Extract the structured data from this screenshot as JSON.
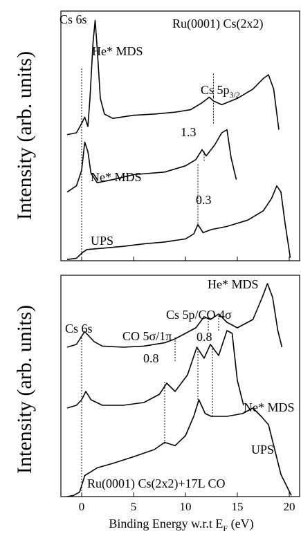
{
  "chart_data": [
    {
      "type": "line",
      "panel": "top",
      "title": "Ru(0001) Cs(2x2)",
      "ylabel": "Intensity (arb. units)",
      "xlabel": "",
      "xlim": [
        -2,
        21
      ],
      "ylim": [
        0,
        4
      ],
      "series": [
        {
          "name": "He* MDS",
          "x": [
            -1.4,
            -0.5,
            0,
            0.3,
            0.6,
            0.8,
            1.1,
            1.3,
            1.5,
            1.8,
            2.2,
            3,
            5,
            7,
            9,
            10.5,
            11.5,
            12.3,
            12.7,
            13.5,
            15,
            16.5,
            17.5,
            18.0,
            18.5,
            19.0
          ],
          "y": [
            2.02,
            2.05,
            2.2,
            2.3,
            2.15,
            2.6,
            3.5,
            3.85,
            3.4,
            2.6,
            2.35,
            2.28,
            2.33,
            2.35,
            2.38,
            2.42,
            2.52,
            2.62,
            2.56,
            2.5,
            2.6,
            2.75,
            2.92,
            2.98,
            2.75,
            2.1
          ]
        },
        {
          "name": "Ne* MDS",
          "x": [
            -1.4,
            -0.5,
            0,
            0.3,
            0.6,
            0.9,
            1.5,
            3,
            5,
            8,
            10,
            11,
            11.6,
            12,
            12.8,
            13.5,
            14,
            14.4,
            14.9
          ],
          "y": [
            1.1,
            1.2,
            1.45,
            1.9,
            1.75,
            1.4,
            1.25,
            1.3,
            1.38,
            1.42,
            1.52,
            1.62,
            1.78,
            1.68,
            1.85,
            2.05,
            2.1,
            1.65,
            1.3
          ]
        },
        {
          "name": "UPS",
          "x": [
            -1.4,
            -0.5,
            0,
            0.5,
            2,
            4,
            6,
            8,
            10,
            10.8,
            11.2,
            11.7,
            12.5,
            14,
            16,
            17.5,
            18.3,
            18.8,
            19.2,
            19.6,
            20.1
          ],
          "y": [
            0.02,
            0.04,
            0.12,
            0.18,
            0.2,
            0.23,
            0.27,
            0.3,
            0.35,
            0.43,
            0.58,
            0.45,
            0.5,
            0.55,
            0.65,
            0.8,
            1.0,
            1.2,
            1.1,
            0.6,
            0.05
          ]
        }
      ],
      "reference_lines": [
        {
          "x": 0.0,
          "y_from": 0.0,
          "y_to": 3.1
        },
        {
          "x": 11.2,
          "y_from": 0.55,
          "y_to": 1.55
        },
        {
          "x": 11.8,
          "y_from": 1.6,
          "y_to": 1.76
        },
        {
          "x": 12.7,
          "y_from": 2.2,
          "y_to": 2.65
        },
        {
          "x": 12.7,
          "y_from": 2.62,
          "y_to": 3.0
        }
      ],
      "annotations": [
        {
          "text": "Cs 6s"
        },
        {
          "text": "He* MDS"
        },
        {
          "text": "Cs 5p",
          "sub": "3/2"
        },
        {
          "text": "1.3"
        },
        {
          "text": "Ne* MDS"
        },
        {
          "text": "0.3"
        },
        {
          "text": "UPS"
        }
      ]
    },
    {
      "type": "line",
      "panel": "bottom",
      "title": "Ru(0001) Cs(2x2)+17L CO",
      "ylabel": "Intensity (arb. units)",
      "xlabel": "Binding Energy w.r.t E",
      "xlabel_sub": "F",
      "xlabel_unit": " (eV)",
      "xlim": [
        -2,
        21
      ],
      "ylim": [
        0,
        4
      ],
      "x_ticks": [
        0,
        5,
        10,
        15,
        20
      ],
      "series": [
        {
          "name": "He* MDS",
          "x": [
            -1.4,
            -0.5,
            0,
            0.3,
            0.7,
            1.2,
            2,
            4,
            6,
            8,
            9,
            10,
            11,
            11.8,
            12.4,
            13.2,
            14,
            15,
            16.5,
            17.4,
            17.9,
            18.4,
            18.9,
            19.3
          ],
          "y": [
            2.7,
            2.75,
            2.9,
            2.98,
            2.9,
            2.8,
            2.72,
            2.7,
            2.72,
            2.78,
            2.85,
            2.95,
            3.05,
            3.25,
            3.2,
            3.3,
            3.15,
            3.05,
            3.2,
            3.6,
            3.85,
            3.6,
            3.0,
            2.7
          ]
        },
        {
          "name": "Ne* MDS",
          "x": [
            -1.4,
            -0.5,
            0,
            0.4,
            0.9,
            2,
            4,
            6,
            7.5,
            8.2,
            9,
            10.2,
            11.1,
            11.8,
            12.4,
            13.2,
            14,
            14.5,
            15.0,
            15.6
          ],
          "y": [
            1.6,
            1.65,
            1.75,
            1.9,
            1.75,
            1.65,
            1.65,
            1.7,
            1.85,
            2.05,
            1.9,
            2.2,
            2.7,
            2.5,
            2.75,
            2.55,
            3.0,
            2.95,
            2.1,
            1.65
          ]
        },
        {
          "name": "UPS",
          "x": [
            -1.4,
            -0.8,
            -0.2,
            0.3,
            1.5,
            3,
            5,
            7,
            8,
            9,
            10,
            10.8,
            11.3,
            11.9,
            12.5,
            14,
            15.5,
            16.5,
            17.3,
            18.0,
            18.4,
            19.2,
            20.2
          ],
          "y": [
            0.0,
            0.02,
            0.08,
            0.38,
            0.52,
            0.6,
            0.72,
            0.85,
            0.98,
            0.92,
            1.1,
            1.45,
            1.75,
            1.5,
            1.45,
            1.45,
            1.5,
            1.6,
            1.45,
            1.3,
            1.0,
            0.4,
            0.02
          ]
        }
      ],
      "reference_lines": [
        {
          "x": 0.0,
          "y_from": 0.0,
          "y_to": 2.9
        },
        {
          "x": 8.0,
          "y_from": 0.95,
          "y_to": 2.1
        },
        {
          "x": 9.0,
          "y_from": 2.45,
          "y_to": 2.9
        },
        {
          "x": 11.2,
          "y_from": 1.7,
          "y_to": 2.7
        },
        {
          "x": 12.2,
          "y_from": 3.0,
          "y_to": 3.25
        },
        {
          "x": 12.6,
          "y_from": 1.45,
          "y_to": 2.75
        },
        {
          "x": 13.2,
          "y_from": 3.0,
          "y_to": 3.3
        }
      ],
      "annotations": [
        {
          "text": "He* MDS"
        },
        {
          "text": "Cs 5p/CO 4σ"
        },
        {
          "text": "Cs 6s"
        },
        {
          "text": "CO 5σ/1π"
        },
        {
          "text": "0.8"
        },
        {
          "text": "0.8"
        },
        {
          "text": "Ne* MDS"
        },
        {
          "text": "UPS"
        }
      ]
    }
  ]
}
